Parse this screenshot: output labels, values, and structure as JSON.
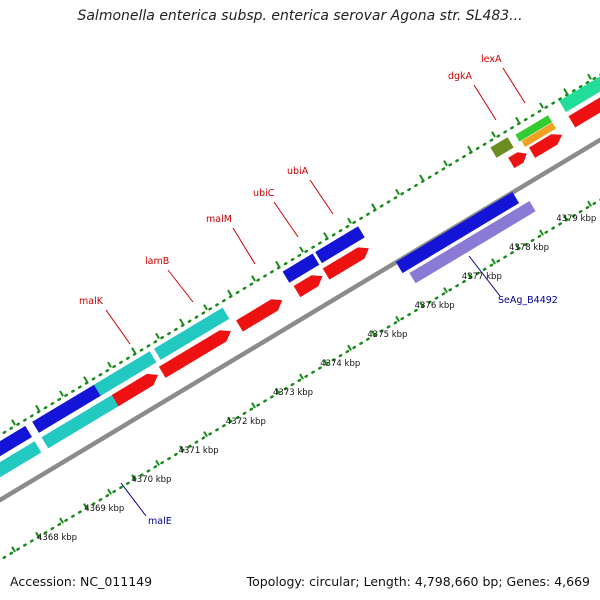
{
  "title": "Salmonella enterica subsp. enterica serovar Agona str. SL483...",
  "footer": {
    "accession": "Accession: NC_011149",
    "summary": "Topology: circular; Length: 4,798,660 bp; Genes: 4,669"
  },
  "colors": {
    "backbone": "#8c8c8c",
    "tick_dots": "#1a8a1a",
    "label_red": "#cc0000",
    "label_blue": "#00008b",
    "cyan": "#22c9c0",
    "blue": "#1414d6",
    "red": "#ee1111",
    "olive": "#6b8e23",
    "green": "#33cc33",
    "orange": "#f4a020",
    "purple": "#8a7ad6",
    "mint": "#22dd99"
  },
  "kbp_ticks": [
    "4368 kbp",
    "4369 kbp",
    "4370 kbp",
    "4371 kbp",
    "4372 kbp",
    "4373 kbp",
    "4374 kbp",
    "4375 kbp",
    "4376 kbp",
    "4377 kbp",
    "4378 kbp",
    "4379 kbp"
  ],
  "gene_labels": [
    {
      "text": "malK",
      "color": "red"
    },
    {
      "text": "lamB",
      "color": "red"
    },
    {
      "text": "malM",
      "color": "red"
    },
    {
      "text": "ubiC",
      "color": "red"
    },
    {
      "text": "ubiA",
      "color": "red"
    },
    {
      "text": "dgkA",
      "color": "red"
    },
    {
      "text": "lexA",
      "color": "red"
    },
    {
      "text": "malE",
      "color": "blue"
    },
    {
      "text": "SeAg_B4492",
      "color": "blue"
    }
  ]
}
